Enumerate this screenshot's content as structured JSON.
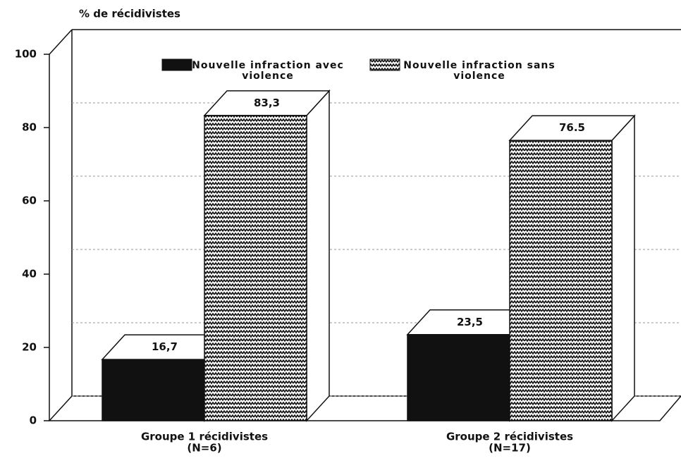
{
  "chart_data": {
    "type": "bar3d",
    "y_axis_label": "% de récidivistes",
    "categories": [
      [
        "Groupe 1 récidivistes",
        "(N=6)"
      ],
      [
        "Groupe 2 récidivistes",
        "(N=17)"
      ]
    ],
    "series": [
      {
        "name": "Nouvelle infraction avec violence",
        "color": "#111111",
        "hatch": false,
        "values": [
          16.7,
          23.5
        ],
        "value_labels": [
          "16,7",
          "23,5"
        ]
      },
      {
        "name": "Nouvelle infraction sans violence",
        "color": "#111111",
        "hatch": true,
        "values": [
          83.3,
          76.5
        ],
        "value_labels": [
          "83,3",
          "76.5"
        ]
      }
    ],
    "ylim": [
      0,
      100
    ],
    "yticks": [
      0,
      20,
      40,
      60,
      80,
      100
    ],
    "grid": true
  }
}
